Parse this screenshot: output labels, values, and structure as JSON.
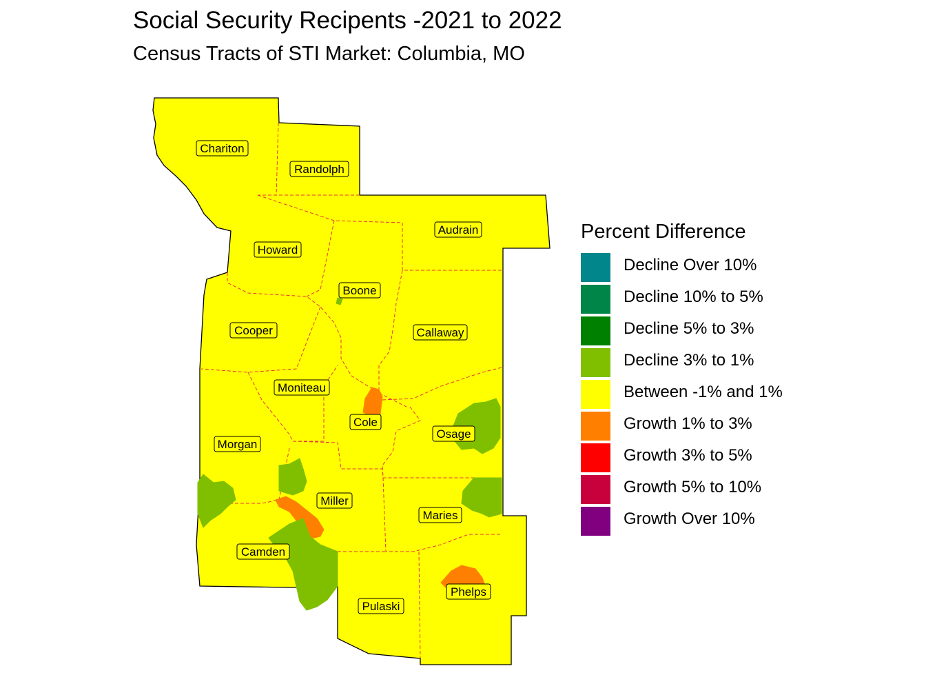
{
  "title": "Social Security Recipents -2021 to 2022",
  "subtitle": "Census Tracts of STI Market: Columbia, MO",
  "legend": {
    "title": "Percent Difference",
    "items": [
      {
        "label": "Decline Over 10%",
        "color": "#00868B"
      },
      {
        "label": "Decline 10% to 5%",
        "color": "#008548"
      },
      {
        "label": "Decline 5% to 3%",
        "color": "#008000"
      },
      {
        "label": "Decline 3% to 1%",
        "color": "#7FBF00"
      },
      {
        "label": "Between -1% and 1%",
        "color": "#FFFF00"
      },
      {
        "label": "Growth 1% to 3%",
        "color": "#FF8000"
      },
      {
        "label": "Growth 3% to 5%",
        "color": "#FF0000"
      },
      {
        "label": "Growth 5% to 10%",
        "color": "#C8003C"
      },
      {
        "label": "Growth Over 10%",
        "color": "#800080"
      }
    ]
  },
  "map": {
    "counties": [
      {
        "name": "Chariton",
        "category": "Between -1% and 1%"
      },
      {
        "name": "Randolph",
        "category": "Between -1% and 1%"
      },
      {
        "name": "Audrain",
        "category": "Between -1% and 1%"
      },
      {
        "name": "Howard",
        "category": "Between -1% and 1%"
      },
      {
        "name": "Boone",
        "category": "Between -1% and 1%"
      },
      {
        "name": "Cooper",
        "category": "Between -1% and 1%"
      },
      {
        "name": "Callaway",
        "category": "Between -1% and 1%"
      },
      {
        "name": "Moniteau",
        "category": "Between -1% and 1%"
      },
      {
        "name": "Cole",
        "category": "Between -1% and 1%"
      },
      {
        "name": "Osage",
        "category": "Between -1% and 1%"
      },
      {
        "name": "Morgan",
        "category": "Between -1% and 1%"
      },
      {
        "name": "Miller",
        "category": "Between -1% and 1%"
      },
      {
        "name": "Maries",
        "category": "Between -1% and 1%"
      },
      {
        "name": "Camden",
        "category": "Between -1% and 1%"
      },
      {
        "name": "Phelps",
        "category": "Between -1% and 1%"
      },
      {
        "name": "Pulaski",
        "category": "Between -1% and 1%"
      }
    ],
    "colors": {
      "base_fill": "#FFFF00",
      "outline": "#000000",
      "county_border": "#E8343C",
      "growth_1_3": "#FF8000",
      "decline_3_1": "#7FBF00"
    }
  }
}
